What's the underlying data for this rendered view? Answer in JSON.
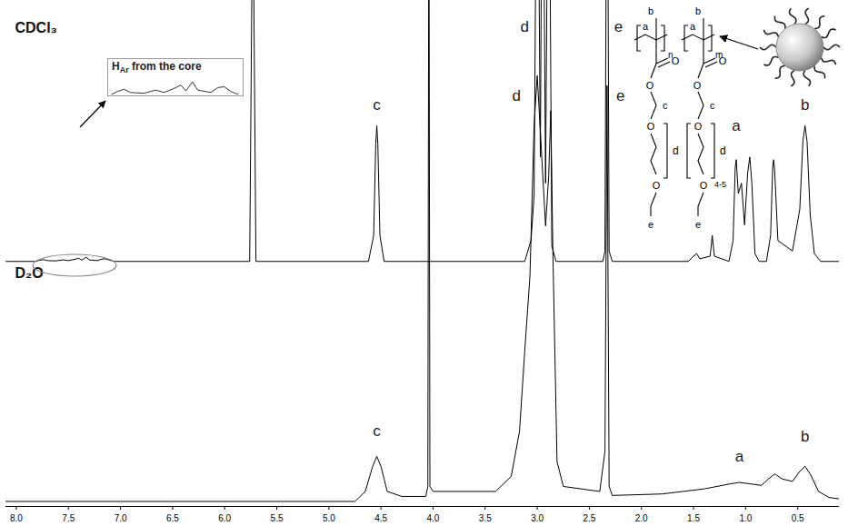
{
  "chart_data": {
    "type": "line",
    "xlim": [
      8.1,
      0.1
    ],
    "xticks": [
      {
        "value": 8,
        "label": "8.0"
      },
      7.5,
      {
        "value": 7,
        "label": "7.0"
      },
      6.5,
      {
        "value": 6,
        "label": "6.0"
      },
      5.5,
      {
        "value": 5,
        "label": "5.0"
      },
      4.5,
      {
        "value": 4,
        "label": "4.0"
      },
      3.5,
      {
        "value": 3,
        "label": "3.0"
      },
      2.5,
      {
        "value": 2,
        "label": "2.0"
      },
      1.5,
      {
        "value": 1,
        "label": "1.0"
      },
      0.5
    ],
    "tick_labels": "x",
    "series": [
      {
        "name": "CDCl₃",
        "color": "#000000",
        "ylim": [
          -2,
          100
        ],
        "x": [
          8.1,
          7.82,
          7.78,
          7.74,
          7.7,
          7.62,
          7.55,
          7.5,
          7.44,
          7.4,
          7.37,
          7.33,
          7.3,
          7.22,
          7.18,
          7.14,
          7.1,
          7.05,
          5.76,
          5.73,
          5.7,
          4.62,
          4.57,
          4.55,
          4.54,
          4.53,
          4.51,
          4.47,
          3.12,
          3.06,
          3.03,
          3.0,
          2.97,
          2.95,
          2.92,
          2.89,
          2.86,
          2.82,
          2.37,
          2.35,
          2.33,
          2.31,
          2.28,
          1.55,
          1.5,
          1.47,
          1.44,
          1.34,
          1.32,
          1.3,
          1.16,
          1.12,
          1.1,
          1.09,
          1.07,
          1.04,
          1.01,
          0.98,
          0.96,
          0.94,
          0.91,
          0.87,
          0.8,
          0.76,
          0.74,
          0.73,
          0.72,
          0.69,
          0.55,
          0.48,
          0.45,
          0.43,
          0.41,
          0.38,
          0.34,
          0.28,
          0.1
        ],
        "values": [
          0,
          0,
          0.4,
          0.7,
          0.3,
          0.2,
          0.6,
          0.3,
          0.8,
          1.2,
          0.5,
          1.6,
          0.6,
          0.3,
          0.9,
          1,
          0.4,
          0,
          0,
          150,
          0,
          0,
          10,
          45,
          52,
          45,
          10,
          0,
          0,
          8,
          25,
          200,
          40,
          200,
          30,
          200,
          6,
          0,
          0,
          4,
          200,
          4,
          0,
          0,
          2,
          3,
          1,
          2,
          10,
          2,
          0,
          8,
          36,
          39,
          26,
          30,
          14,
          34,
          40,
          30,
          3,
          0,
          0,
          10,
          36,
          39,
          34,
          8,
          4,
          20,
          46,
          52,
          46,
          18,
          3,
          0,
          0
        ],
        "annotations": [
          {
            "text": "c",
            "x": 4.54,
            "y": 58
          },
          {
            "text": "d",
            "x": 3.12,
            "y": 88
          },
          {
            "text": "e",
            "x": 2.22,
            "y": 88
          },
          {
            "text": "a",
            "x": 1.09,
            "y": 50
          },
          {
            "text": "b",
            "x": 0.43,
            "y": 58
          }
        ]
      },
      {
        "name": "D₂O",
        "color": "#000000",
        "ylim": [
          -1,
          100
        ],
        "x": [
          8.1,
          4.75,
          4.65,
          4.58,
          4.54,
          4.5,
          4.44,
          4.3,
          4.07,
          4.05,
          4.04,
          4.03,
          4.0,
          3.4,
          3.25,
          3.17,
          3.12,
          3.07,
          3.03,
          3.0,
          2.96,
          2.92,
          2.89,
          2.87,
          2.85,
          2.81,
          2.75,
          2.4,
          2.35,
          2.33,
          2.31,
          2.28,
          1.8,
          1.4,
          1.15,
          1.06,
          0.95,
          0.85,
          0.78,
          0.72,
          0.65,
          0.55,
          0.48,
          0.43,
          0.38,
          0.3,
          0.2,
          0.1
        ],
        "values": [
          0,
          0,
          2,
          7,
          9,
          7,
          2,
          1,
          1,
          3,
          130,
          3,
          2,
          2,
          5,
          14,
          30,
          45,
          75,
          85,
          70,
          55,
          65,
          78,
          50,
          8,
          3,
          2,
          10,
          83,
          3,
          1.2,
          1.5,
          2.5,
          3.5,
          3.8,
          3.5,
          3.2,
          4.5,
          5.5,
          4.5,
          4,
          6,
          7,
          5.5,
          2,
          0.8,
          0.5
        ],
        "annotations": [
          {
            "text": "c",
            "x": 4.54,
            "y": 13
          },
          {
            "text": "d",
            "x": 3.2,
            "y": 80
          },
          {
            "text": "e",
            "x": 2.2,
            "y": 80
          },
          {
            "text": "a",
            "x": 1.06,
            "y": 8
          },
          {
            "text": "b",
            "x": 0.43,
            "y": 12
          }
        ]
      }
    ],
    "inset": {
      "text": "H",
      "subscript": "Ar",
      "suffix": " from the core",
      "xlim": [
        7.82,
        7.05
      ],
      "ylim": [
        0,
        2
      ]
    }
  },
  "structure": {
    "units": [
      {
        "backbone": "a",
        "substituent": "b",
        "repeat": "n",
        "carbonyl": "O",
        "ester": "O",
        "chain": [
          "c",
          "O",
          "d",
          "O",
          "e"
        ]
      },
      {
        "backbone": "a",
        "substituent": "b",
        "repeat": "m",
        "carbonyl": "O",
        "ester": "O",
        "chain": [
          "c",
          "O",
          "d",
          "O",
          "e"
        ],
        "chain_repeat": "4-5"
      }
    ]
  }
}
